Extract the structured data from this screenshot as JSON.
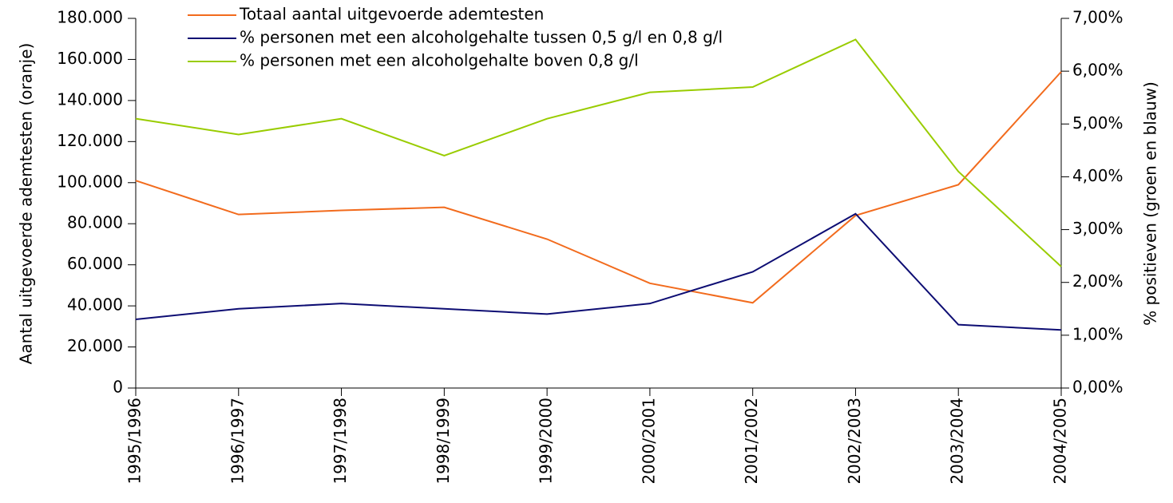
{
  "chart_data": {
    "type": "line",
    "categories": [
      "1995/1996",
      "1996/1997",
      "1997/1998",
      "1998/1999",
      "1999/2000",
      "2000/2001",
      "2001/2002",
      "2002/2003",
      "2003/2004",
      "2004/2005"
    ],
    "series": [
      {
        "name": "Totaal aantal uitgevoerde ademtesten",
        "color": "#f26b1d",
        "values": [
          101000,
          84500,
          86500,
          88000,
          72500,
          51000,
          41500,
          84000,
          99000,
          154000
        ]
      },
      {
        "name": "% personen met een alcoholgehalte tussen 0,5 g/l en 0,8 g/l",
        "color": "#0d0d73",
        "axis": "y2",
        "values": [
          1.3,
          1.5,
          1.6,
          1.5,
          1.4,
          1.6,
          2.2,
          3.3,
          1.2,
          1.1
        ]
      },
      {
        "name": "% personen met een alcoholgehalte boven 0,8 g/l",
        "color": "#99cc00",
        "axis": "y2",
        "values": [
          5.1,
          4.8,
          5.1,
          4.4,
          5.1,
          5.6,
          5.7,
          6.6,
          4.1,
          2.3
        ]
      }
    ],
    "ylabel": "Aantal uitgevoerde ademtesten (oranje)",
    "y2label": "% positieven (groen en blauw)",
    "ylim": [
      0,
      180000
    ],
    "yticks": [
      0,
      {
        "value": 20000,
        "label": "20.000"
      },
      {
        "value": 40000,
        "label": "40.000"
      },
      {
        "value": 60000,
        "label": "60.000"
      },
      {
        "value": 80000,
        "label": "80.000"
      },
      {
        "value": 100000,
        "label": "100.000"
      },
      {
        "value": 120000,
        "label": "120.000"
      },
      {
        "value": 140000,
        "label": "140.000"
      },
      {
        "value": 160000,
        "label": "160.000"
      },
      {
        "value": 180000,
        "label": "180.000"
      }
    ],
    "y2lim": [
      0,
      7
    ],
    "y2ticks": [
      {
        "value": 0,
        "label": "0,00%"
      },
      {
        "value": 1,
        "label": "1,00%"
      },
      {
        "value": 2,
        "label": "2,00%"
      },
      {
        "value": 3,
        "label": "3,00%"
      },
      {
        "value": 4,
        "label": "4,00%"
      },
      {
        "value": 5,
        "label": "5,00%"
      },
      {
        "value": 6,
        "label": "6,00%"
      },
      {
        "value": 7,
        "label": "7,00%"
      }
    ]
  }
}
